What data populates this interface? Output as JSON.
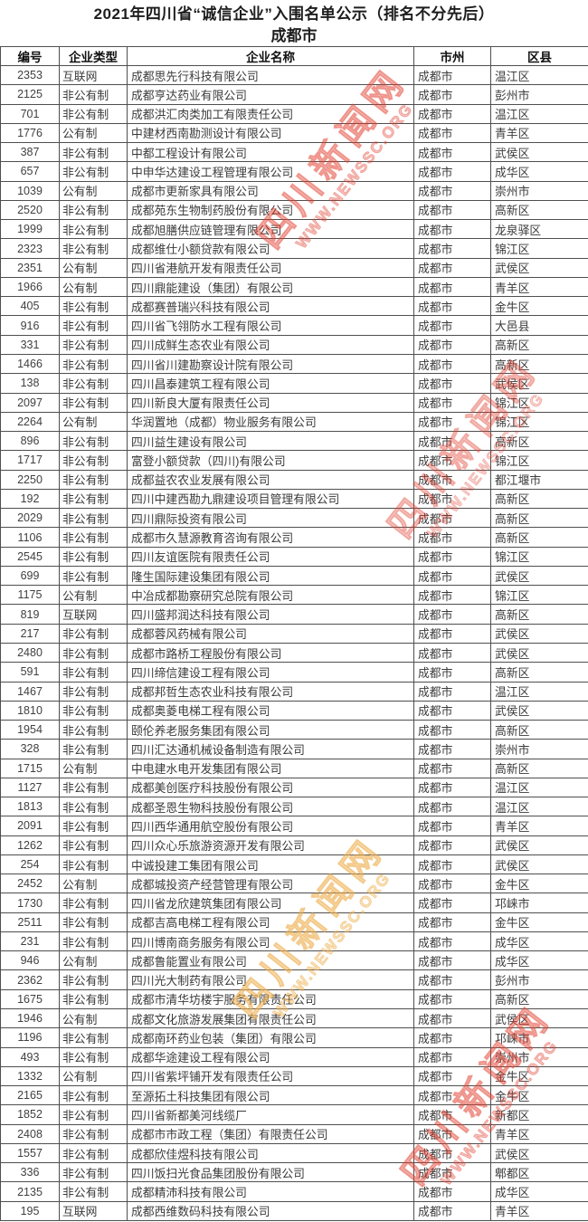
{
  "header": {
    "title": "2021年四川省“诚信企业”入围名单公示（排名不分先后）",
    "subtitle": "成都市"
  },
  "watermark": {
    "text": "四川新闻网",
    "url": "WWW.NEWSSC.ORG",
    "color": "#e13e30"
  },
  "table": {
    "columns": [
      "编号",
      "企业类型",
      "企业名称",
      "市州",
      "区县"
    ],
    "col_keys": [
      "id",
      "type",
      "name",
      "city",
      "district"
    ],
    "rows": [
      [
        "2353",
        "互联网",
        "成都思先行科技有限公司",
        "成都市",
        "温江区"
      ],
      [
        "2125",
        "非公有制",
        "成都亨达药业有限公司",
        "成都市",
        "彭州市"
      ],
      [
        "701",
        "非公有制",
        "成都洪汇肉类加工有限责任公司",
        "成都市",
        "温江区"
      ],
      [
        "1776",
        "公有制",
        "中建材西南勘测设计有限公司",
        "成都市",
        "青羊区"
      ],
      [
        "387",
        "非公有制",
        "中都工程设计有限公司",
        "成都市",
        "武侯区"
      ],
      [
        "657",
        "非公有制",
        "中申华达建设工程管理有限公司",
        "成都市",
        "成华区"
      ],
      [
        "1039",
        "公有制",
        "成都市更新家具有限公司",
        "成都市",
        "崇州市"
      ],
      [
        "2520",
        "非公有制",
        "成都苑东生物制药股份有限公司",
        "成都市",
        "高新区"
      ],
      [
        "1999",
        "非公有制",
        "成都旭膳供应链管理有限公司",
        "成都市",
        "龙泉驿区"
      ],
      [
        "2323",
        "非公有制",
        "成都维仕小额贷款有限公司",
        "成都市",
        "锦江区"
      ],
      [
        "2351",
        "公有制",
        "四川省港航开发有限责任公司",
        "成都市",
        "武侯区"
      ],
      [
        "1966",
        "公有制",
        "四川鼎能建设（集团）有限公司",
        "成都市",
        "青羊区"
      ],
      [
        "405",
        "非公有制",
        "成都赛普瑞兴科技有限公司",
        "成都市",
        "金牛区"
      ],
      [
        "916",
        "非公有制",
        "四川省飞翎防水工程有限公司",
        "成都市",
        "大邑县"
      ],
      [
        "331",
        "非公有制",
        "四川成鲜生态农业有限公司",
        "成都市",
        "高新区"
      ],
      [
        "1466",
        "非公有制",
        "四川省川建勘察设计院有限公司",
        "成都市",
        "高新区"
      ],
      [
        "138",
        "非公有制",
        "四川昌泰建筑工程有限公司",
        "成都市",
        "武侯区"
      ],
      [
        "2097",
        "非公有制",
        "四川新良大厦有限责任公司",
        "成都市",
        "锦江区"
      ],
      [
        "2264",
        "公有制",
        "华润置地（成都）物业服务有限公司",
        "成都市",
        "锦江区"
      ],
      [
        "896",
        "非公有制",
        "四川益生建设有限公司",
        "成都市",
        "高新区"
      ],
      [
        "1717",
        "非公有制",
        "富登小额贷款（四川)有限公司",
        "成都市",
        "锦江区"
      ],
      [
        "2250",
        "非公有制",
        "成都益农农业发展有限公司",
        "成都市",
        "都江堰市"
      ],
      [
        "192",
        "非公有制",
        "四川中建西勘九鼎建设项目管理有限公司",
        "成都市",
        "高新区"
      ],
      [
        "2029",
        "非公有制",
        "四川鼎际投资有限公司",
        "成都市",
        "高新区"
      ],
      [
        "1106",
        "非公有制",
        "成都市久慧源教育咨询有限公司",
        "成都市",
        "高新区"
      ],
      [
        "2545",
        "非公有制",
        "四川友谊医院有限责任公司",
        "成都市",
        "锦江区"
      ],
      [
        "699",
        "非公有制",
        "隆生国际建设集团有限公司",
        "成都市",
        "武侯区"
      ],
      [
        "1175",
        "公有制",
        "中冶成都勘察研究总院有限公司",
        "成都市",
        "锦江区"
      ],
      [
        "819",
        "互联网",
        "四川盛邦润达科技有限公司",
        "成都市",
        "高新区"
      ],
      [
        "217",
        "非公有制",
        "成都蓉风药械有限公司",
        "成都市",
        "武侯区"
      ],
      [
        "2480",
        "非公有制",
        "成都市路桥工程股份有限公司",
        "成都市",
        "武侯区"
      ],
      [
        "591",
        "非公有制",
        "四川缔信建设工程有限公司",
        "成都市",
        "高新区"
      ],
      [
        "1467",
        "非公有制",
        "成都邦哲生态农业科技有限公司",
        "成都市",
        "温江区"
      ],
      [
        "1810",
        "非公有制",
        "成都奥菱电梯工程有限公司",
        "成都市",
        "武侯区"
      ],
      [
        "1954",
        "非公有制",
        "颐伦养老服务集团有限公司",
        "成都市",
        "高新区"
      ],
      [
        "328",
        "非公有制",
        "四川汇达通机械设备制造有限公司",
        "成都市",
        "崇州市"
      ],
      [
        "1715",
        "公有制",
        "中电建水电开发集团有限公司",
        "成都市",
        "高新区"
      ],
      [
        "1127",
        "非公有制",
        "成都美创医疗科技股份有限公司",
        "成都市",
        "温江区"
      ],
      [
        "1813",
        "非公有制",
        "成都圣恩生物科技股份有限公司",
        "成都市",
        "温江区"
      ],
      [
        "2091",
        "非公有制",
        "四川西华通用航空股份有限公司",
        "成都市",
        "青羊区"
      ],
      [
        "1262",
        "非公有制",
        "四川众心乐旅游资源开发有限公司",
        "成都市",
        "武侯区"
      ],
      [
        "254",
        "非公有制",
        "中诚投建工集团有限公司",
        "成都市",
        "武侯区"
      ],
      [
        "2452",
        "公有制",
        "成都城投资产经营管理有限公司",
        "成都市",
        "金牛区"
      ],
      [
        "1730",
        "非公有制",
        "四川省龙欣建筑集团有限公司",
        "成都市",
        "邛崃市"
      ],
      [
        "2511",
        "非公有制",
        "成都吉高电梯工程有限公司",
        "成都市",
        "金牛区"
      ],
      [
        "231",
        "非公有制",
        "四川博南商务服务有限公司",
        "成都市",
        "成华区"
      ],
      [
        "946",
        "公有制",
        "成都鲁能置业有限公司",
        "成都市",
        "成华区"
      ],
      [
        "2362",
        "非公有制",
        "四川光大制药有限公司",
        "成都市",
        "彭州市"
      ],
      [
        "1675",
        "非公有制",
        "成都市清华坊楼宇服务有限责任公司",
        "成都市",
        "高新区"
      ],
      [
        "1946",
        "公有制",
        "成都文化旅游发展集团有限责任公司",
        "成都市",
        "武侯区"
      ],
      [
        "1196",
        "非公有制",
        "成都南环药业包装（集团）有限公司",
        "成都市",
        "邛崃市"
      ],
      [
        "493",
        "非公有制",
        "成都华途建设工程有限公司",
        "成都市",
        "崇州市"
      ],
      [
        "1332",
        "公有制",
        "四川省紫坪铺开发有限责任公司",
        "成都市",
        "金牛区"
      ],
      [
        "2165",
        "非公有制",
        "至源拓土科技集团有限公司",
        "成都市",
        "金牛区"
      ],
      [
        "1852",
        "非公有制",
        "四川省新都美河线缆厂",
        "成都市",
        "新都区"
      ],
      [
        "2408",
        "非公有制",
        "成都市市政工程（集团）有限责任公司",
        "成都市",
        "青羊区"
      ],
      [
        "1557",
        "非公有制",
        "成都欣佳煜科技有限公司",
        "成都市",
        "武侯区"
      ],
      [
        "336",
        "非公有制",
        "四川饭扫光食品集团股份有限公司",
        "成都市",
        "郫都区"
      ],
      [
        "2135",
        "非公有制",
        "成都精沛科技有限公司",
        "成都市",
        "成华区"
      ],
      [
        "195",
        "互联网",
        "成都西维数码科技有限公司",
        "成都市",
        "青羊区"
      ]
    ]
  }
}
